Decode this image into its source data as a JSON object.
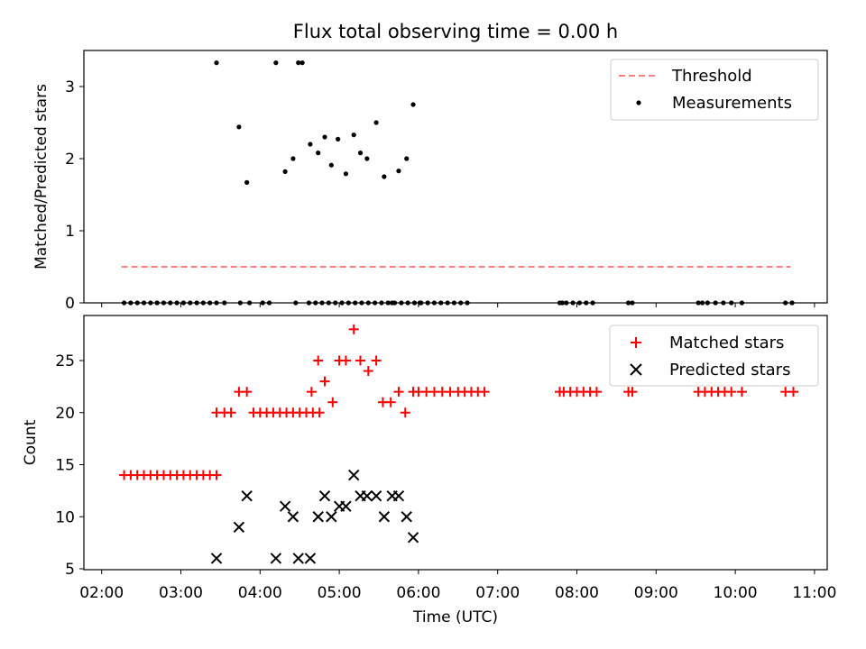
{
  "chart_data": [
    {
      "type": "scatter",
      "title": "Flux total observing time = 0.00 h",
      "xlabel": "",
      "ylabel": "Matched/Predicted stars",
      "xlim": [
        "02:00",
        "11:00"
      ],
      "ylim": [
        0,
        3.5
      ],
      "yticks": [
        0,
        1,
        2,
        3
      ],
      "grid": false,
      "legend": "top-right",
      "series": [
        {
          "name": "Threshold",
          "style": "dashed-line",
          "color": "#ff7f7f",
          "x": [
            "02:15",
            "10:42"
          ],
          "y": [
            0.5,
            0.5
          ]
        },
        {
          "name": "Measurements",
          "style": "dot",
          "color": "#000000",
          "x": [
            "02:17",
            "02:22",
            "02:27",
            "02:32",
            "02:37",
            "02:42",
            "02:47",
            "02:52",
            "02:57",
            "03:02",
            "03:07",
            "03:12",
            "03:17",
            "03:22",
            "03:27",
            "03:33",
            "03:45",
            "03:52",
            "04:02",
            "04:07",
            "04:27",
            "04:37",
            "04:42",
            "04:47",
            "04:52",
            "04:57",
            "05:02",
            "05:07",
            "05:12",
            "05:17",
            "05:22",
            "05:27",
            "05:32",
            "05:37",
            "05:42",
            "05:47",
            "05:52",
            "05:57",
            "06:02",
            "06:07",
            "06:12",
            "06:17",
            "06:22",
            "06:27",
            "06:32",
            "06:37",
            "07:47",
            "07:49",
            "07:52",
            "07:57",
            "08:02",
            "08:07",
            "08:12",
            "08:39",
            "08:42",
            "09:32",
            "09:35",
            "09:39",
            "09:45",
            "09:51",
            "09:57",
            "10:05",
            "10:38",
            "10:43",
            "03:27",
            "03:44",
            "03:50",
            "04:12",
            "04:19",
            "04:25",
            "04:29",
            "04:32",
            "04:38",
            "04:44",
            "04:49",
            "04:54",
            "04:59",
            "05:05",
            "05:11",
            "05:16",
            "05:21",
            "05:28",
            "05:34",
            "05:40",
            "05:45",
            "05:51",
            "05:56",
            "06:01"
          ],
          "y": [
            0,
            0,
            0,
            0,
            0,
            0,
            0,
            0,
            0,
            0,
            0,
            0,
            0,
            0,
            0,
            0,
            0,
            0,
            0,
            0,
            0,
            0,
            0,
            0,
            0,
            0,
            0,
            0,
            0,
            0,
            0,
            0,
            0,
            0,
            0,
            0,
            0,
            0,
            0,
            0,
            0,
            0,
            0,
            0,
            0,
            0,
            0,
            0,
            0,
            0,
            0,
            0,
            0,
            0,
            0,
            0,
            0,
            0,
            0,
            0,
            0,
            0,
            0,
            0,
            3.33,
            2.44,
            1.67,
            3.33,
            1.82,
            2.0,
            3.33,
            3.33,
            2.2,
            2.08,
            2.3,
            1.91,
            2.27,
            1.79,
            2.33,
            2.08,
            2.0,
            2.5,
            1.75,
            0,
            1.83,
            2.0,
            2.75,
            0
          ]
        }
      ]
    },
    {
      "type": "scatter",
      "title": "",
      "xlabel": "Time (UTC)",
      "ylabel": "Count",
      "xlim": [
        "02:00",
        "11:00"
      ],
      "xticks": [
        "02:00",
        "03:00",
        "04:00",
        "05:00",
        "06:00",
        "07:00",
        "08:00",
        "09:00",
        "10:00",
        "11:00"
      ],
      "ylim": [
        5,
        29
      ],
      "yticks": [
        5,
        10,
        15,
        20,
        25
      ],
      "grid": false,
      "legend": "top-right",
      "series": [
        {
          "name": "Matched stars",
          "style": "plus",
          "color": "#ff0000",
          "x": [
            "02:17",
            "02:22",
            "02:27",
            "02:32",
            "02:37",
            "02:42",
            "02:47",
            "02:52",
            "02:57",
            "03:02",
            "03:07",
            "03:12",
            "03:17",
            "03:22",
            "03:27",
            "03:27",
            "03:33",
            "03:38",
            "03:44",
            "03:50",
            "03:55",
            "04:00",
            "04:05",
            "04:10",
            "04:15",
            "04:20",
            "04:25",
            "04:30",
            "04:35",
            "04:40",
            "04:45",
            "04:39",
            "04:44",
            "04:49",
            "04:55",
            "05:00",
            "05:05",
            "05:11",
            "05:16",
            "05:22",
            "05:28",
            "05:33",
            "05:39",
            "05:45",
            "05:50",
            "05:56",
            "06:00",
            "06:06",
            "06:12",
            "06:18",
            "06:24",
            "06:30",
            "06:35",
            "06:40",
            "06:45",
            "06:50",
            "07:47",
            "07:50",
            "07:55",
            "08:00",
            "08:05",
            "08:10",
            "08:15",
            "08:39",
            "08:42",
            "09:32",
            "09:37",
            "09:42",
            "09:47",
            "09:52",
            "09:57",
            "10:05",
            "10:38",
            "10:44"
          ],
          "y": [
            14,
            14,
            14,
            14,
            14,
            14,
            14,
            14,
            14,
            14,
            14,
            14,
            14,
            14,
            14,
            20,
            20,
            20,
            22,
            22,
            20,
            20,
            20,
            20,
            20,
            20,
            20,
            20,
            20,
            20,
            20,
            22,
            25,
            23,
            21,
            25,
            25,
            28,
            25,
            24,
            25,
            21,
            21,
            22,
            20,
            22,
            22,
            22,
            22,
            22,
            22,
            22,
            22,
            22,
            22,
            22,
            22,
            22,
            22,
            22,
            22,
            22,
            22,
            22,
            22,
            22,
            22,
            22,
            22,
            22,
            22,
            22,
            22,
            22
          ]
        },
        {
          "name": "Predicted stars",
          "style": "x",
          "color": "#000000",
          "x": [
            "03:27",
            "03:44",
            "03:50",
            "04:12",
            "04:19",
            "04:25",
            "04:29",
            "04:38",
            "04:44",
            "04:49",
            "04:54",
            "05:00",
            "05:05",
            "05:11",
            "05:16",
            "05:21",
            "05:28",
            "05:34",
            "05:40",
            "05:45",
            "05:51",
            "05:56"
          ],
          "y": [
            6,
            9,
            12,
            6,
            11,
            10,
            6,
            6,
            10,
            12,
            10,
            11,
            11,
            14,
            12,
            12,
            12,
            10,
            12,
            12,
            10,
            8
          ]
        }
      ]
    }
  ]
}
